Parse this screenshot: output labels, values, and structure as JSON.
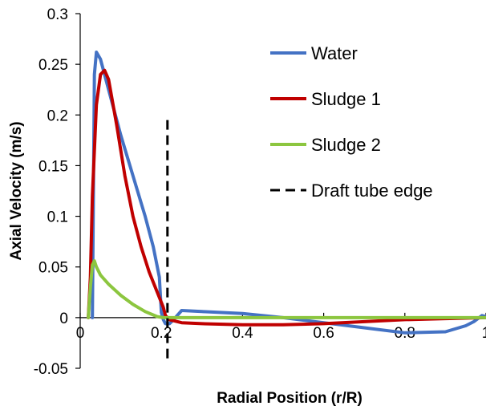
{
  "chart_data": {
    "type": "line",
    "title": "",
    "xlabel": "Radial Position (r/R)",
    "ylabel": "Axial Velocity (m/s)",
    "xlim": [
      0,
      1
    ],
    "ylim": [
      -0.05,
      0.3
    ],
    "x_ticks": [
      {
        "value": 0,
        "label": "0"
      },
      {
        "value": 0.2,
        "label": "0.2"
      },
      {
        "value": 0.4,
        "label": "0.4"
      },
      {
        "value": 0.6,
        "label": "0.6"
      },
      {
        "value": 0.8,
        "label": "0.8"
      },
      {
        "value": 1,
        "label": "1"
      }
    ],
    "y_ticks": [
      {
        "value": -0.05,
        "label": "-0.05"
      },
      {
        "value": 0,
        "label": "0"
      },
      {
        "value": 0.05,
        "label": "0.05"
      },
      {
        "value": 0.1,
        "label": "0.1"
      },
      {
        "value": 0.15,
        "label": "0.15"
      },
      {
        "value": 0.2,
        "label": "0.2"
      },
      {
        "value": 0.25,
        "label": "0.25"
      },
      {
        "value": 0.3,
        "label": "0.3"
      }
    ],
    "grid": false,
    "legend_position": "top-right",
    "series": [
      {
        "name": "Water",
        "color": "#4472C4",
        "x": [
          0.03,
          0.035,
          0.04,
          0.05,
          0.07,
          0.1,
          0.13,
          0.16,
          0.18,
          0.195,
          0.2,
          0.205,
          0.21,
          0.22,
          0.23,
          0.25,
          0.3,
          0.4,
          0.5,
          0.6,
          0.7,
          0.8,
          0.9,
          0.95,
          0.97,
          0.99,
          1.0
        ],
        "y": [
          0.0,
          0.24,
          0.262,
          0.255,
          0.225,
          0.18,
          0.14,
          0.1,
          0.07,
          0.04,
          0.005,
          -0.002,
          -0.006,
          -0.006,
          -0.002,
          0.007,
          0.006,
          0.004,
          0.0,
          -0.005,
          -0.01,
          -0.015,
          -0.014,
          -0.008,
          -0.004,
          0.002,
          0.001
        ]
      },
      {
        "name": "Sludge 1",
        "color": "#C00000",
        "x": [
          0.02,
          0.025,
          0.03,
          0.04,
          0.05,
          0.06,
          0.07,
          0.09,
          0.11,
          0.13,
          0.15,
          0.17,
          0.19,
          0.205,
          0.21,
          0.22,
          0.25,
          0.3,
          0.4,
          0.5,
          0.6,
          0.7,
          0.8,
          0.9,
          1.0
        ],
        "y": [
          0.0,
          0.04,
          0.12,
          0.21,
          0.24,
          0.244,
          0.235,
          0.19,
          0.14,
          0.1,
          0.07,
          0.045,
          0.025,
          0.01,
          0.002,
          -0.002,
          -0.005,
          -0.006,
          -0.007,
          -0.007,
          -0.006,
          -0.004,
          -0.002,
          -0.001,
          0.0
        ]
      },
      {
        "name": "Sludge 2",
        "color": "#8CC63F",
        "x": [
          0.02,
          0.025,
          0.03,
          0.035,
          0.04,
          0.05,
          0.07,
          0.1,
          0.13,
          0.16,
          0.19,
          0.205,
          0.22,
          0.3,
          0.5,
          0.7,
          0.9,
          1.0
        ],
        "y": [
          0.0,
          0.03,
          0.052,
          0.056,
          0.05,
          0.042,
          0.033,
          0.022,
          0.013,
          0.006,
          0.001,
          0.0,
          0.0,
          0.0,
          0.0,
          0.0,
          0.0,
          0.0
        ]
      },
      {
        "name": "Draft tube edge",
        "color": "#000000",
        "dashed": true,
        "x": [
          0.215,
          0.215
        ],
        "y": [
          0.195,
          -0.045
        ]
      }
    ]
  }
}
